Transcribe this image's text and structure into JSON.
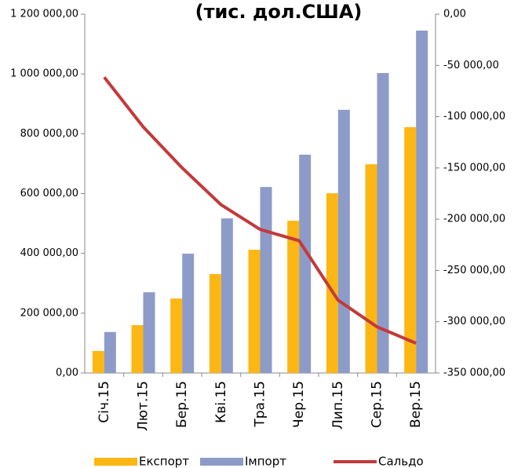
{
  "chart_data": {
    "type": "bar_line",
    "title": "(тис. дол.США)",
    "categories": [
      "Січ.15",
      "Лют.15",
      "Бер.15",
      "Кві.15",
      "Тра.15",
      "Чер.15",
      "Лип.15",
      "Сер.15",
      "Вер.15"
    ],
    "series": [
      {
        "name": "Експорт",
        "color": "#fcb714",
        "type": "bar",
        "values": [
          73500,
          160000,
          249000,
          331000,
          412000,
          509000,
          601000,
          698000,
          822000
        ]
      },
      {
        "name": "Імпорт",
        "color": "#8d9bc9",
        "type": "bar",
        "values": [
          137000,
          270000,
          399000,
          517000,
          622000,
          730000,
          880000,
          1003000,
          1145000
        ]
      },
      {
        "name": "Сальдо",
        "color": "#c33a3b",
        "type": "line",
        "axis": "y2",
        "values": [
          -61500,
          -110000,
          -150000,
          -186000,
          -210000,
          -221000,
          -279000,
          -305000,
          -321000
        ]
      }
    ],
    "ylim": [
      0,
      1200000
    ],
    "yticks": [
      {
        "value": 0,
        "label": "0,00"
      },
      {
        "value": 200000,
        "label": "200 000,00"
      },
      {
        "value": 400000,
        "label": "400 000,00"
      },
      {
        "value": 600000,
        "label": "600 000,00"
      },
      {
        "value": 800000,
        "label": "800 000,00"
      },
      {
        "value": 1000000,
        "label": "1 000 000,00"
      },
      {
        "value": 1200000,
        "label": "1 200 000,00"
      }
    ],
    "y2lim": [
      -350000,
      0
    ],
    "y2ticks": [
      {
        "value": 0,
        "label": "0,00"
      },
      {
        "value": -50000,
        "label": "-50 000,00"
      },
      {
        "value": -100000,
        "label": "-100 000,00"
      },
      {
        "value": -150000,
        "label": "-150 000,00"
      },
      {
        "value": -200000,
        "label": "-200 000,00"
      },
      {
        "value": -250000,
        "label": "-250 000,00"
      },
      {
        "value": -300000,
        "label": "-300 000,00"
      },
      {
        "value": -350000,
        "label": "-350 000,00"
      }
    ],
    "legend": "bottom"
  }
}
